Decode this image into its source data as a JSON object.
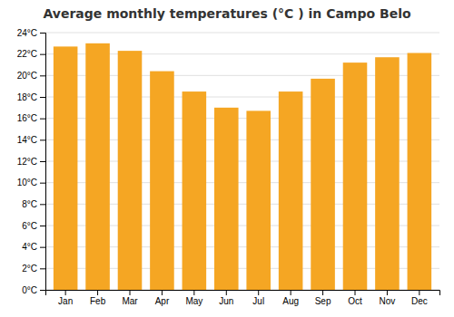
{
  "chart_data": {
    "type": "bar",
    "title": "Average monthly temperatures (°C ) in Campo Belo",
    "categories": [
      "Jan",
      "Feb",
      "Mar",
      "Apr",
      "May",
      "Jun",
      "Jul",
      "Aug",
      "Sep",
      "Oct",
      "Nov",
      "Dec"
    ],
    "values": [
      22.7,
      23.0,
      22.3,
      20.4,
      18.5,
      17.0,
      16.7,
      18.5,
      19.7,
      21.2,
      21.7,
      22.1
    ],
    "color": "#F5A623",
    "ylim": [
      0,
      24
    ],
    "yticks": [
      {
        "value": 0,
        "label": "0°C"
      },
      {
        "value": 2,
        "label": "2°C"
      },
      {
        "value": 4,
        "label": "4°C"
      },
      {
        "value": 6,
        "label": "6°C"
      },
      {
        "value": 8,
        "label": "8°C"
      },
      {
        "value": 10,
        "label": "10°C"
      },
      {
        "value": 12,
        "label": "12°C"
      },
      {
        "value": 14,
        "label": "14°C"
      },
      {
        "value": 16,
        "label": "16°C"
      },
      {
        "value": 18,
        "label": "18°C"
      },
      {
        "value": 20,
        "label": "20°C"
      },
      {
        "value": 22,
        "label": "22°C"
      },
      {
        "value": 24,
        "label": "24°C"
      }
    ],
    "grid": true
  }
}
